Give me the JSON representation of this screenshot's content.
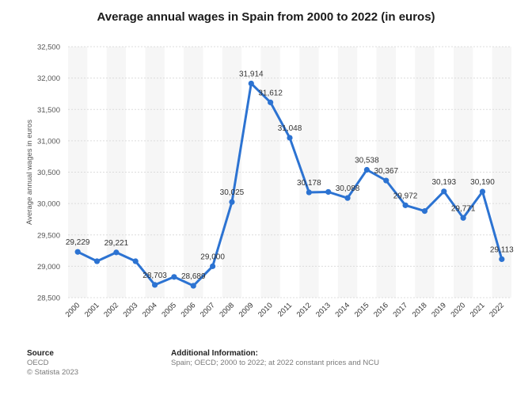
{
  "chart_data": {
    "type": "line",
    "title": "Average annual wages in Spain from 2000 to 2022 (in euros)",
    "xlabel": "",
    "ylabel": "Average annual wages in euros",
    "ylim": [
      28500,
      32500
    ],
    "yticks": [
      28500,
      29000,
      29500,
      30000,
      30500,
      31000,
      31500,
      32000,
      32500
    ],
    "ytick_labels": [
      "28,500",
      "29,000",
      "29,500",
      "30,000",
      "30,500",
      "31,000",
      "31,500",
      "32,000",
      "32,500"
    ],
    "categories": [
      "2000",
      "2001",
      "2002",
      "2003",
      "2004",
      "2005",
      "2006",
      "2007",
      "2008",
      "2009",
      "2010",
      "2011",
      "2012",
      "2013",
      "2014",
      "2015",
      "2016",
      "2017",
      "2018",
      "2019",
      "2020",
      "2021",
      "2022"
    ],
    "values": [
      29229,
      29080,
      29221,
      29080,
      28703,
      28830,
      28689,
      29000,
      30025,
      31914,
      31612,
      31048,
      30178,
      30185,
      30088,
      30538,
      30367,
      29972,
      29880,
      30193,
      29771,
      30190,
      29113
    ],
    "data_labels": [
      "29,229",
      "",
      "29,221",
      "",
      "28,703",
      "",
      "28,689",
      "29,000",
      "30,025",
      "31,914",
      "31,612",
      "31,048",
      "30,178",
      "",
      "30,088",
      "30,538",
      "30,367",
      "29,972",
      "",
      "30,193",
      "29,771",
      "30,190",
      "29,113"
    ],
    "line_color": "#2c73d2",
    "grid": true
  },
  "footer": {
    "source_heading": "Source",
    "source_line1": "OECD",
    "source_line2": "© Statista 2023",
    "info_heading": "Additional Information:",
    "info_text": "Spain; OECD; 2000 to 2022; at 2022 constant prices and NCU"
  }
}
